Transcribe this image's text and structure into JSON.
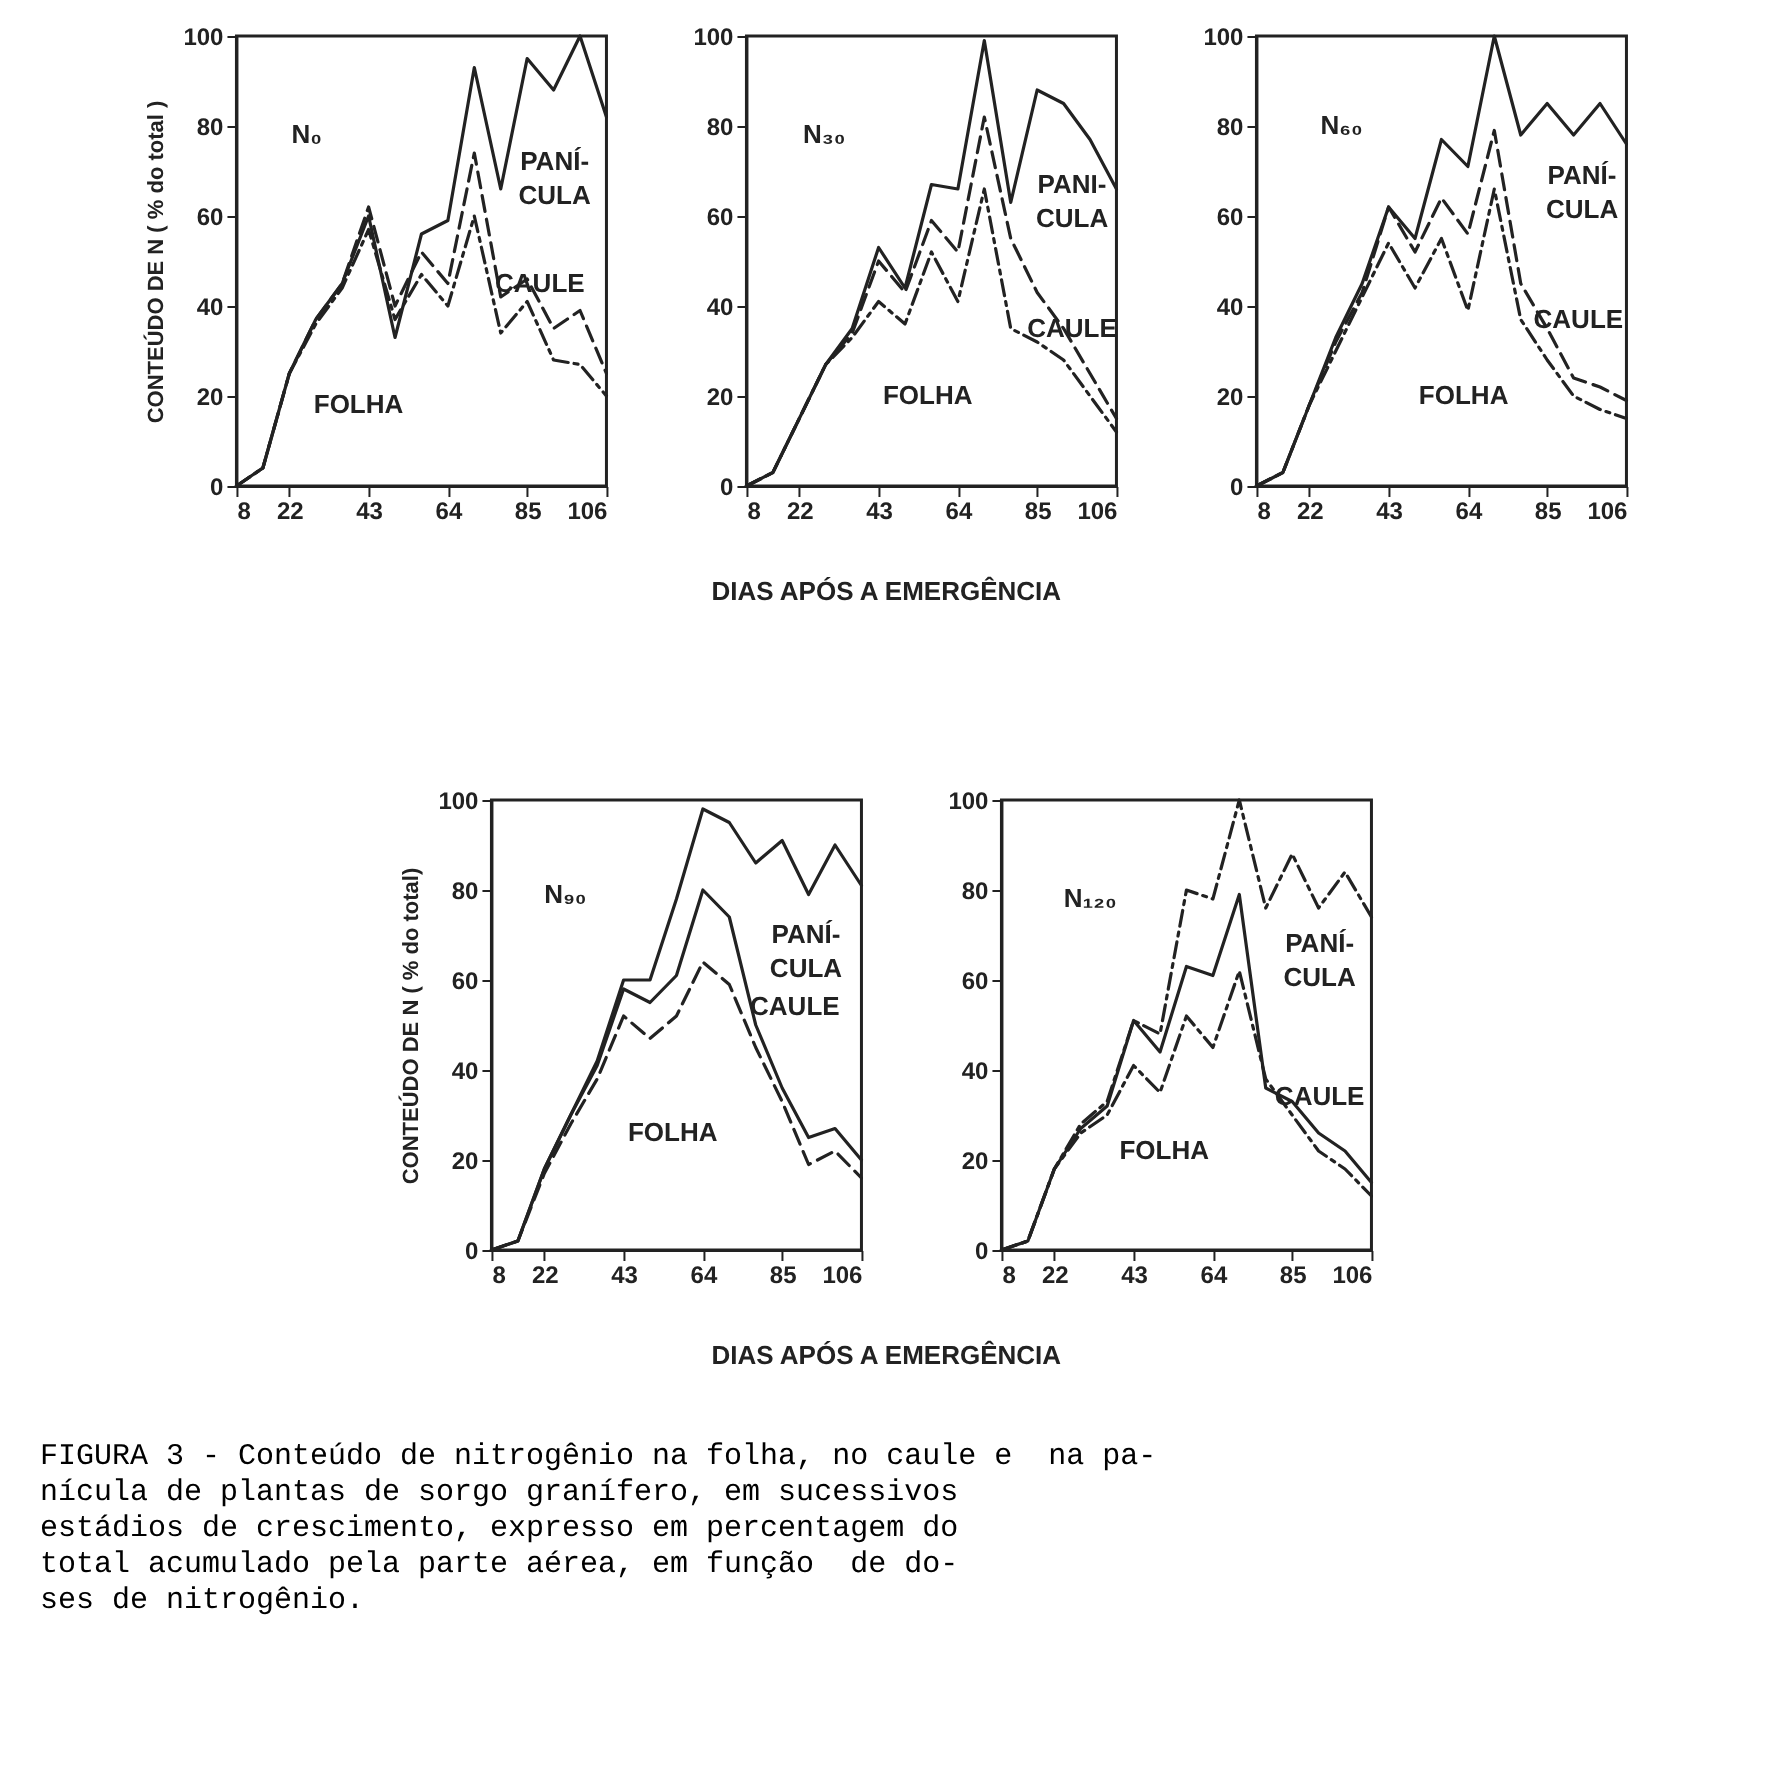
{
  "chart_data": [
    {
      "type": "line",
      "ylabel": "CONTEÚDO DE N ( % do total )",
      "x": [
        8,
        15,
        22,
        29,
        36,
        43,
        50,
        57,
        64,
        71,
        78,
        85,
        92,
        99,
        106
      ],
      "xlim": [
        8,
        106
      ],
      "xticks": [
        8,
        22,
        43,
        64,
        85,
        106
      ],
      "ylim": [
        0,
        100
      ],
      "yticks": [
        0,
        20,
        40,
        60,
        80,
        100
      ],
      "series": [
        {
          "color": "#222222",
          "line_style": "solid",
          "values": [
            0,
            4,
            25,
            37,
            45,
            60,
            33,
            56,
            59,
            93,
            66,
            95,
            88,
            100,
            82
          ]
        },
        {
          "color": "#222222",
          "line_style": "dashed",
          "values": [
            0,
            4,
            25,
            37,
            45,
            62,
            40,
            52,
            45,
            74,
            42,
            46,
            35,
            39,
            25
          ]
        },
        {
          "color": "#222222",
          "line_style": "dotted",
          "values": [
            0,
            4,
            25,
            36,
            44,
            57,
            37,
            47,
            40,
            60,
            34,
            41,
            28,
            27,
            20
          ]
        }
      ],
      "annotations": [
        "N₀",
        "PANÍ-\nCULA",
        "CAULE",
        "FOLHA"
      ]
    },
    {
      "type": "line",
      "xlabel": "DIAS APÓS A EMERGÊNCIA",
      "x": [
        8,
        15,
        22,
        29,
        36,
        43,
        50,
        57,
        64,
        71,
        78,
        85,
        92,
        99,
        106
      ],
      "xlim": [
        8,
        106
      ],
      "xticks": [
        8,
        22,
        43,
        64,
        85,
        106
      ],
      "ylim": [
        0,
        100
      ],
      "yticks": [
        0,
        20,
        40,
        60,
        80,
        100
      ],
      "series": [
        {
          "color": "#222222",
          "line_style": "solid",
          "values": [
            0,
            3,
            15,
            27,
            35,
            53,
            44,
            67,
            66,
            99,
            63,
            88,
            85,
            77,
            66
          ]
        },
        {
          "color": "#222222",
          "line_style": "dashed",
          "values": [
            0,
            3,
            15,
            27,
            34,
            50,
            43,
            59,
            52,
            82,
            55,
            43,
            35,
            25,
            15
          ]
        },
        {
          "color": "#222222",
          "line_style": "dotted",
          "values": [
            0,
            3,
            15,
            27,
            33,
            41,
            36,
            52,
            41,
            66,
            35,
            32,
            28,
            20,
            12
          ]
        }
      ],
      "annotations": [
        "N₃₀",
        "PANI-\nCULA",
        "CAULE",
        "FOLHA"
      ]
    },
    {
      "type": "line",
      "x": [
        8,
        15,
        22,
        29,
        36,
        43,
        50,
        57,
        64,
        71,
        78,
        85,
        92,
        99,
        106
      ],
      "xlim": [
        8,
        106
      ],
      "xticks": [
        8,
        22,
        43,
        64,
        85,
        106
      ],
      "ylim": [
        0,
        100
      ],
      "yticks": [
        0,
        20,
        40,
        60,
        80,
        100
      ],
      "series": [
        {
          "color": "#222222",
          "line_style": "solid",
          "values": [
            0,
            3,
            18,
            33,
            45,
            62,
            55,
            77,
            71,
            100,
            78,
            85,
            78,
            85,
            76
          ]
        },
        {
          "color": "#222222",
          "line_style": "dashed",
          "values": [
            0,
            3,
            18,
            32,
            43,
            62,
            52,
            64,
            56,
            79,
            45,
            35,
            24,
            22,
            19
          ]
        },
        {
          "color": "#222222",
          "line_style": "dotted",
          "values": [
            0,
            3,
            18,
            30,
            42,
            54,
            44,
            55,
            39,
            66,
            37,
            28,
            20,
            17,
            15
          ]
        }
      ],
      "annotations": [
        "N₆₀",
        "PANÍ-\nCULA",
        "CAULE",
        "FOLHA"
      ]
    },
    {
      "type": "line",
      "xlabel": "DIAS APÓS A EMERGÊNCIA",
      "ylabel": "CONTEÚDO DE N ( % do total)",
      "x": [
        8,
        15,
        22,
        29,
        36,
        43,
        50,
        57,
        64,
        71,
        78,
        85,
        92,
        99,
        106
      ],
      "xlim": [
        8,
        106
      ],
      "xticks": [
        8,
        22,
        43,
        64,
        85,
        106
      ],
      "ylim": [
        0,
        100
      ],
      "yticks": [
        0,
        20,
        40,
        60,
        80,
        100
      ],
      "series": [
        {
          "color": "#222222",
          "line_style": "solid",
          "values": [
            0,
            2,
            18,
            30,
            42,
            60,
            60,
            78,
            98,
            95,
            86,
            91,
            79,
            90,
            81
          ]
        },
        {
          "color": "#222222",
          "line_style": "solid",
          "values": [
            0,
            2,
            18,
            30,
            41,
            58,
            55,
            61,
            80,
            74,
            50,
            36,
            25,
            27,
            20
          ]
        },
        {
          "color": "#222222",
          "line_style": "dashed",
          "values": [
            0,
            2,
            17,
            28,
            38,
            52,
            47,
            52,
            64,
            59,
            45,
            33,
            19,
            22,
            16
          ]
        }
      ],
      "annotations": [
        "N₉₀",
        "PANÍ-\nCULA",
        "CAULE",
        "FOLHA"
      ]
    },
    {
      "type": "line",
      "x": [
        8,
        15,
        22,
        29,
        36,
        43,
        50,
        57,
        64,
        71,
        78,
        85,
        92,
        99,
        106
      ],
      "xlim": [
        8,
        106
      ],
      "xticks": [
        8,
        22,
        43,
        64,
        85,
        106
      ],
      "ylim": [
        0,
        100
      ],
      "yticks": [
        0,
        20,
        40,
        60,
        80,
        100
      ],
      "series": [
        {
          "color": "#222222",
          "line_style": "dotted",
          "values": [
            0,
            2,
            18,
            28,
            33,
            51,
            48,
            80,
            78,
            100,
            76,
            88,
            76,
            84,
            74
          ]
        },
        {
          "color": "#222222",
          "line_style": "solid",
          "values": [
            0,
            2,
            18,
            27,
            32,
            51,
            44,
            63,
            61,
            79,
            36,
            33,
            26,
            22,
            15
          ]
        },
        {
          "color": "#222222",
          "line_style": "dotted",
          "values": [
            0,
            2,
            18,
            26,
            30,
            41,
            35,
            52,
            45,
            62,
            38,
            30,
            22,
            18,
            12
          ]
        }
      ],
      "annotations": [
        "N₁₂₀",
        "PANÍ-\nCULA",
        "CAULE",
        "FOLHA",
        "FIGURA 3 - Conteúdo de nitrogênio na folha, no caule e  na pa-\nnícula de plantas de sorgo granífero, em sucessivos\nestádios de crescimento, expresso em percentagem do\ntotal acumulado pela parte aérea, em função  de do-\nses de nitrogênio."
      ]
    }
  ]
}
